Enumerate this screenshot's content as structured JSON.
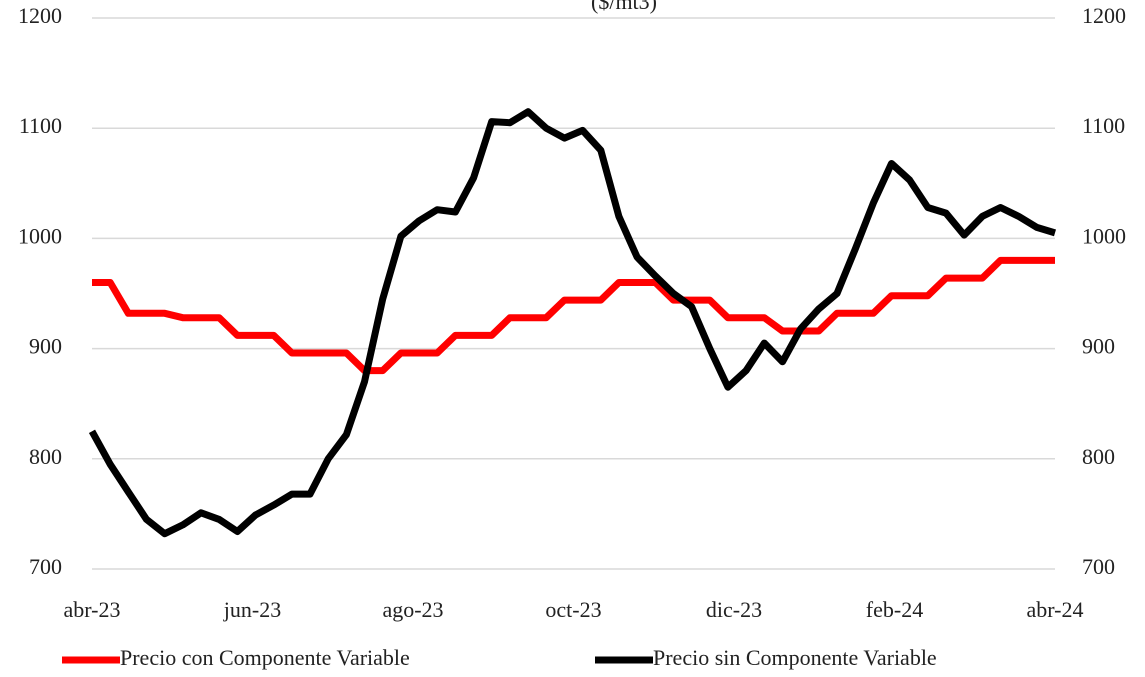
{
  "chart_data": {
    "type": "line",
    "title": "($/mt3)",
    "xtick_labels": [
      "abr-23",
      "jun-23",
      "ago-23",
      "oct-23",
      "dic-23",
      "feb-24",
      "abr-24"
    ],
    "ylim": [
      700,
      1200
    ],
    "yticks": [
      700,
      800,
      900,
      1000,
      1100,
      1200
    ],
    "y2lim": [
      700,
      1200
    ],
    "y2ticks": [
      700,
      800,
      900,
      1000,
      1100,
      1200
    ],
    "grid": true,
    "legend": "bottom",
    "series": [
      {
        "name": "Precio con Componente Variable",
        "color": "#ff0000",
        "values": [
          960,
          960,
          932,
          932,
          932,
          928,
          928,
          928,
          912,
          912,
          912,
          896,
          896,
          896,
          896,
          880,
          880,
          896,
          896,
          896,
          912,
          912,
          912,
          928,
          928,
          928,
          944,
          944,
          944,
          960,
          960,
          960,
          944,
          944,
          944,
          928,
          928,
          928,
          916,
          916,
          916,
          932,
          932,
          932,
          948,
          948,
          948,
          964,
          964,
          964,
          980,
          980,
          980,
          980
        ]
      },
      {
        "name": "Precio sin Componente Variable",
        "color": "#000000",
        "values": [
          825,
          795,
          770,
          745,
          732,
          740,
          751,
          745,
          734,
          749,
          758,
          768,
          768,
          800,
          822,
          870,
          945,
          1002,
          1016,
          1026,
          1024,
          1055,
          1106,
          1105,
          1115,
          1100,
          1091,
          1098,
          1080,
          1020,
          983,
          966,
          950,
          938,
          900,
          865,
          880,
          905,
          888,
          918,
          936,
          950,
          990,
          1032,
          1068,
          1053,
          1028,
          1023,
          1003,
          1020,
          1028,
          1020,
          1010,
          1005
        ]
      }
    ]
  }
}
